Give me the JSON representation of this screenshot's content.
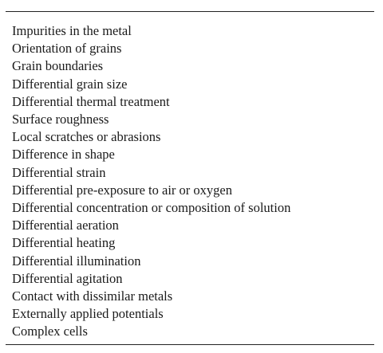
{
  "table": {
    "items": [
      "Impurities in the metal",
      "Orientation of grains",
      "Grain boundaries",
      "Differential grain size",
      "Differential thermal treatment",
      "Surface roughness",
      "Local scratches or abrasions",
      "Difference in shape",
      "Differential strain",
      "Differential pre-exposure to air or oxygen",
      "Differential concentration or composition of solution",
      "Differential aeration",
      "Differential heating",
      "Differential illumination",
      "Differential agitation",
      "Contact with dissimilar metals",
      "Externally applied potentials",
      "Complex cells"
    ]
  }
}
